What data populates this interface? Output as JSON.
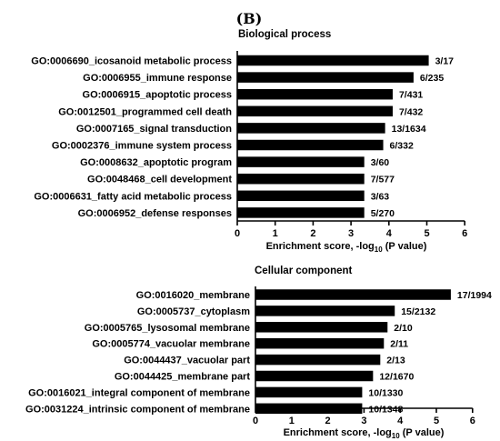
{
  "panel_label": "(B)",
  "chart_data": [
    {
      "type": "bar",
      "orientation": "horizontal",
      "title": "Biological process",
      "categories": [
        "GO:0006690_icosanoid metabolic process",
        "GO:0006955_immune response",
        "GO:0006915_apoptotic process",
        "GO:0012501_programmed cell death",
        "GO:0007165_signal transduction",
        "GO:0002376_immune system process",
        "GO:0008632_apoptotic program",
        "GO:0048468_cell development",
        "GO:0006631_fatty acid metabolic process",
        "GO:0006952_defense responses"
      ],
      "values": [
        5.05,
        4.65,
        4.1,
        4.1,
        3.9,
        3.85,
        3.35,
        3.35,
        3.35,
        3.35
      ],
      "data_labels": [
        "3/17",
        "6/235",
        "7/431",
        "7/432",
        "13/1634",
        "6/332",
        "3/60",
        "7/577",
        "3/63",
        "5/270"
      ],
      "xlabel": "Enrichment score, -log",
      "xlabel_subscript": "10",
      "xlabel_suffix": " (P value)",
      "xlim": [
        0,
        6
      ],
      "xticks": [
        "0",
        "1",
        "2",
        "3",
        "4",
        "5",
        "6"
      ],
      "grid": false
    },
    {
      "type": "bar",
      "orientation": "horizontal",
      "title": "Cellular component",
      "categories": [
        "GO:0016020_membrane",
        "GO:0005737_cytoplasm",
        "GO:0005765_lysosomal membrane",
        "GO:0005774_vacuolar membrane",
        "GO:0044437_vacuolar part",
        "GO:0044425_membrane part",
        "GO:0016021_integral component of membrane",
        "GO:0031224_intrinsic component of membrane"
      ],
      "values": [
        5.4,
        3.85,
        3.65,
        3.55,
        3.45,
        3.25,
        2.95,
        2.95
      ],
      "data_labels": [
        "17/1994",
        "15/2132",
        "2/10",
        "2/11",
        "2/13",
        "12/1670",
        "10/1330",
        "10/1348"
      ],
      "xlabel": "Enrichment score, -log",
      "xlabel_subscript": "10",
      "xlabel_suffix": " (P value)",
      "xlim": [
        0,
        6
      ],
      "xticks": [
        "0",
        "1",
        "2",
        "3",
        "4",
        "5",
        "6"
      ],
      "grid": false
    }
  ]
}
